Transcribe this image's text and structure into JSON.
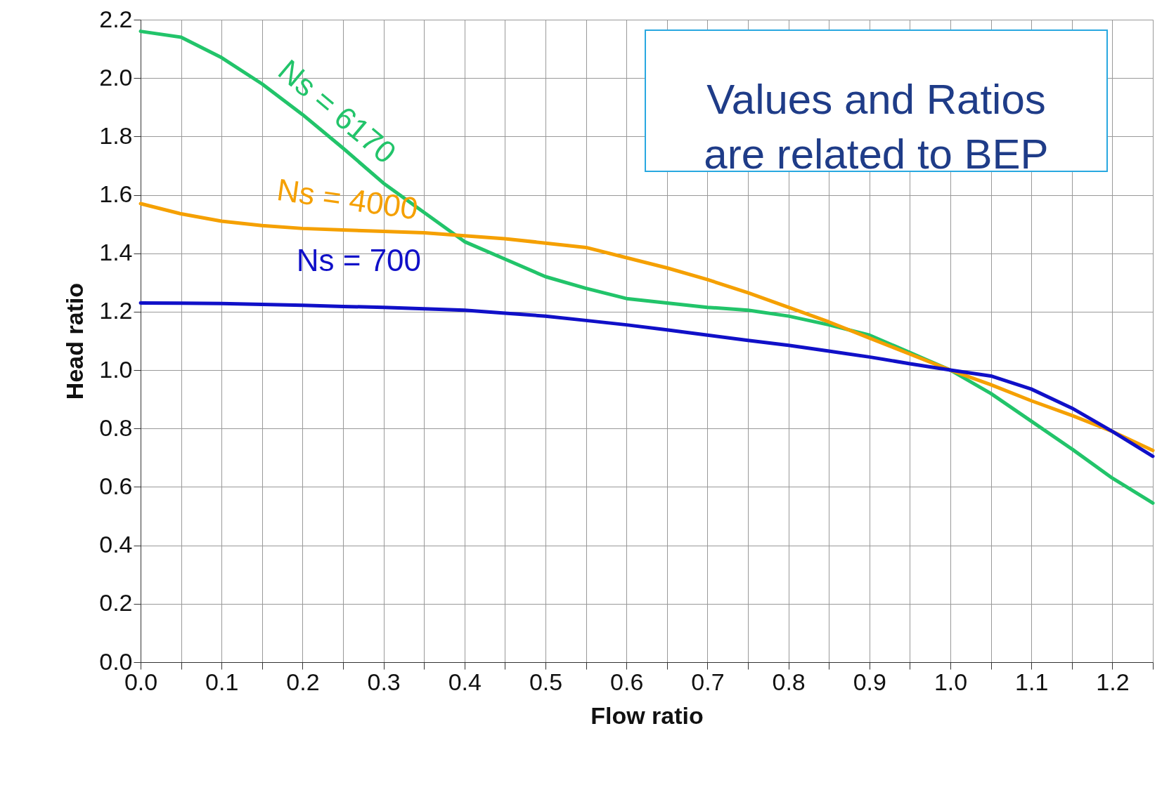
{
  "chart_data": {
    "type": "line",
    "xlabel": "Flow ratio",
    "ylabel": "Head ratio",
    "x": [
      0,
      0.05,
      0.1,
      0.15,
      0.2,
      0.25,
      0.3,
      0.35,
      0.4,
      0.45,
      0.5,
      0.55,
      0.6,
      0.65,
      0.7,
      0.75,
      0.8,
      0.85,
      0.9,
      0.95,
      1.0,
      1.05,
      1.1,
      1.15,
      1.2,
      1.25
    ],
    "series": [
      {
        "name": "Ns = 6170",
        "color": "#22c46a",
        "values": [
          2.16,
          2.14,
          2.07,
          1.98,
          1.875,
          1.76,
          1.64,
          1.54,
          1.44,
          1.38,
          1.32,
          1.28,
          1.245,
          1.23,
          1.215,
          1.205,
          1.185,
          1.155,
          1.12,
          1.06,
          1.0,
          0.92,
          0.825,
          0.73,
          0.63,
          0.545
        ]
      },
      {
        "name": "Ns = 4000",
        "color": "#f5a000",
        "values": [
          1.57,
          1.535,
          1.51,
          1.495,
          1.485,
          1.48,
          1.475,
          1.47,
          1.46,
          1.45,
          1.435,
          1.42,
          1.385,
          1.35,
          1.31,
          1.265,
          1.215,
          1.165,
          1.11,
          1.055,
          1.0,
          0.95,
          0.895,
          0.845,
          0.79,
          0.725
        ]
      },
      {
        "name": "Ns = 700",
        "color": "#1010c8",
        "values": [
          1.23,
          1.229,
          1.228,
          1.225,
          1.222,
          1.218,
          1.215,
          1.21,
          1.205,
          1.195,
          1.185,
          1.17,
          1.155,
          1.138,
          1.12,
          1.102,
          1.085,
          1.065,
          1.045,
          1.022,
          1.0,
          0.98,
          0.935,
          0.87,
          0.79,
          0.705
        ]
      }
    ],
    "xlim": [
      0,
      1.25
    ],
    "ylim": [
      0,
      2.2
    ],
    "xticks": [
      {
        "value": 0,
        "label": "0.0"
      },
      {
        "value": 0.05,
        "label": null
      },
      0.1,
      {
        "value": 0.15,
        "label": null
      },
      0.2,
      {
        "value": 0.25,
        "label": null
      },
      0.3,
      {
        "value": 0.35,
        "label": null
      },
      0.4,
      {
        "value": 0.45,
        "label": null
      },
      0.5,
      {
        "value": 0.55,
        "label": null
      },
      0.6,
      {
        "value": 0.65,
        "label": null
      },
      0.7,
      {
        "value": 0.75,
        "label": null
      },
      0.8,
      {
        "value": 0.85,
        "label": null
      },
      0.9,
      {
        "value": 0.95,
        "label": null
      },
      {
        "value": 1.0,
        "label": "1.0"
      },
      {
        "value": 1.05,
        "label": null
      },
      1.1,
      {
        "value": 1.15,
        "label": null
      },
      1.2,
      {
        "value": 1.25,
        "label": null
      }
    ],
    "yticks": [
      {
        "value": 0,
        "label": "0.0"
      },
      {
        "value": 0.2,
        "label": "0.2"
      },
      {
        "value": 0.4,
        "label": "0.4"
      },
      {
        "value": 0.6,
        "label": "0.6"
      },
      {
        "value": 0.8,
        "label": "0.8"
      },
      {
        "value": 1.0,
        "label": "1.0"
      },
      {
        "value": 1.2,
        "label": "1.2"
      },
      {
        "value": 1.4,
        "label": "1.4"
      },
      {
        "value": 1.6,
        "label": "1.6"
      },
      {
        "value": 1.8,
        "label": "1.8"
      },
      {
        "value": 2.0,
        "label": "2.0"
      },
      {
        "value": 2.2,
        "label": "2.2"
      }
    ],
    "grid": true,
    "legend": false,
    "marker": "none",
    "line_style": "solid",
    "annotations": [
      "Values and Ratios\nare related to BEP"
    ]
  }
}
